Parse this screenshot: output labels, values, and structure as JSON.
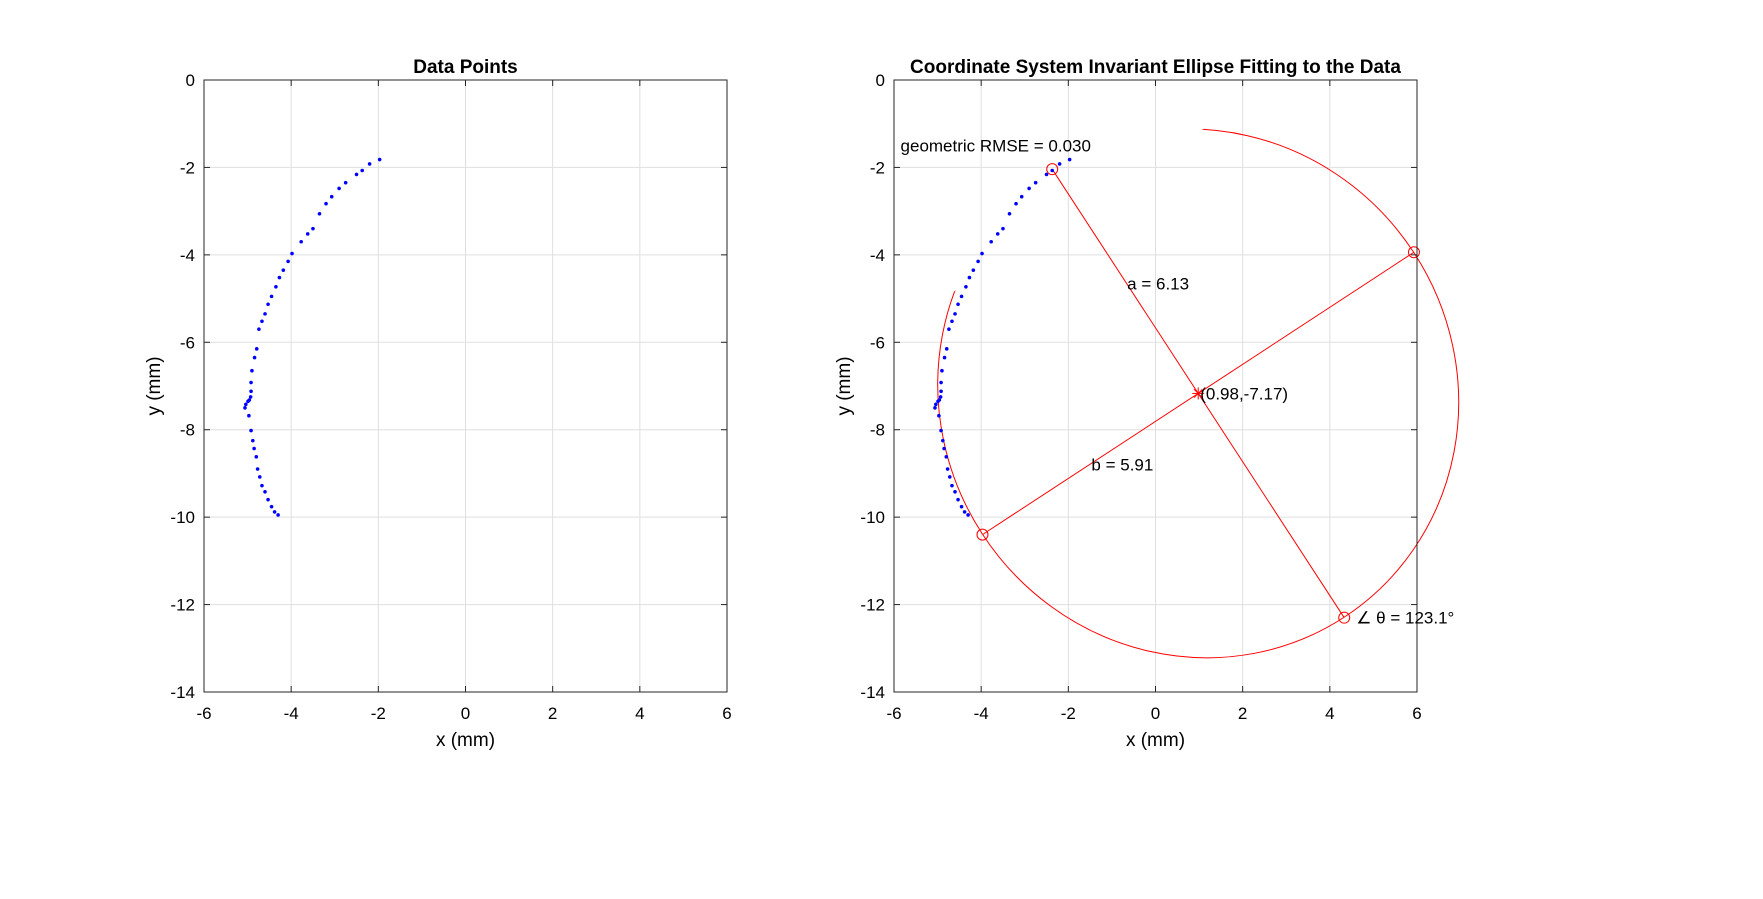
{
  "chart_data": [
    {
      "type": "scatter",
      "title": "Data Points",
      "xlabel": "x (mm)",
      "ylabel": "y (mm)",
      "xlim": [
        -6,
        6
      ],
      "ylim": [
        -14,
        0
      ],
      "xticks": [
        -6,
        -4,
        -2,
        0,
        2,
        4,
        6
      ],
      "yticks": [
        -14,
        -12,
        -10,
        -8,
        -6,
        -4,
        -2,
        0
      ],
      "xticklabels": [
        "-6",
        "-4",
        "-2",
        "0",
        "2",
        "4",
        "6"
      ],
      "yticklabels": [
        "-14",
        "-12",
        "-10",
        "-8",
        "-6",
        "-4",
        "-2",
        "0"
      ],
      "grid": true,
      "series": [
        {
          "color": "#0000ff",
          "x": [
            -1.97,
            -2.2,
            -2.37,
            -2.5,
            -2.75,
            -2.9,
            -3.07,
            -3.2,
            -3.35,
            -3.5,
            -3.62,
            -3.77,
            -3.98,
            -4.07,
            -4.18,
            -4.27,
            -4.35,
            -4.45,
            -4.53,
            -4.6,
            -4.67,
            -4.74,
            -4.79,
            -4.84,
            -4.9,
            -4.92,
            -4.92,
            -4.93,
            -4.96,
            -4.99,
            -5.04,
            -5.06,
            -4.97,
            -4.92,
            -4.88,
            -4.85,
            -4.8,
            -4.77,
            -4.72,
            -4.67,
            -4.6,
            -4.53,
            -4.45,
            -4.38,
            -4.3
          ],
          "y": [
            -1.82,
            -1.92,
            -2.07,
            -2.16,
            -2.35,
            -2.48,
            -2.67,
            -2.83,
            -3.06,
            -3.4,
            -3.52,
            -3.7,
            -3.97,
            -4.15,
            -4.35,
            -4.52,
            -4.73,
            -4.95,
            -5.13,
            -5.35,
            -5.52,
            -5.7,
            -6.15,
            -6.35,
            -6.65,
            -6.92,
            -7.12,
            -7.25,
            -7.32,
            -7.35,
            -7.42,
            -7.5,
            -7.68,
            -8.02,
            -8.25,
            -8.43,
            -8.62,
            -8.9,
            -9.08,
            -9.28,
            -9.42,
            -9.6,
            -9.76,
            -9.88,
            -9.95
          ]
        }
      ]
    },
    {
      "type": "scatter",
      "title": "Coordinate System Invariant Ellipse Fitting to the Data",
      "xlabel": "x (mm)",
      "ylabel": "y (mm)",
      "xlim": [
        -6,
        6
      ],
      "ylim": [
        -14,
        0
      ],
      "xticks": [
        -6,
        -4,
        -2,
        0,
        2,
        4,
        6
      ],
      "yticks": [
        -14,
        -12,
        -10,
        -8,
        -6,
        -4,
        -2,
        0
      ],
      "xticklabels": [
        "-6",
        "-4",
        "-2",
        "0",
        "2",
        "4",
        "6"
      ],
      "yticklabels": [
        "-14",
        "-12",
        "-10",
        "-8",
        "-6",
        "-4",
        "-2",
        "0"
      ],
      "grid": true,
      "series": [
        {
          "color": "#0000ff",
          "x": [
            -1.97,
            -2.2,
            -2.37,
            -2.5,
            -2.75,
            -2.9,
            -3.07,
            -3.2,
            -3.35,
            -3.5,
            -3.62,
            -3.77,
            -3.98,
            -4.07,
            -4.18,
            -4.27,
            -4.35,
            -4.45,
            -4.53,
            -4.6,
            -4.67,
            -4.74,
            -4.79,
            -4.84,
            -4.9,
            -4.92,
            -4.92,
            -4.93,
            -4.96,
            -4.99,
            -5.04,
            -5.06,
            -4.97,
            -4.92,
            -4.88,
            -4.85,
            -4.8,
            -4.77,
            -4.72,
            -4.67,
            -4.6,
            -4.53,
            -4.45,
            -4.38,
            -4.3
          ],
          "y": [
            -1.82,
            -1.92,
            -2.07,
            -2.16,
            -2.35,
            -2.48,
            -2.67,
            -2.83,
            -3.06,
            -3.4,
            -3.52,
            -3.7,
            -3.97,
            -4.15,
            -4.35,
            -4.52,
            -4.73,
            -4.95,
            -5.13,
            -5.35,
            -5.52,
            -5.7,
            -6.15,
            -6.35,
            -6.65,
            -6.92,
            -7.12,
            -7.25,
            -7.32,
            -7.35,
            -7.42,
            -7.5,
            -7.68,
            -8.02,
            -8.25,
            -8.43,
            -8.62,
            -8.9,
            -9.08,
            -9.28,
            -9.42,
            -9.6,
            -9.76,
            -9.88,
            -9.95
          ]
        }
      ],
      "ellipse": {
        "color": "#ff0000",
        "center": [
          0.98,
          -7.17
        ],
        "a": 6.13,
        "b": 5.91,
        "theta_deg": 123.1,
        "vertices": [
          [
            -2.37,
            -2.04
          ],
          [
            4.33,
            -12.3
          ],
          [
            5.93,
            -3.94
          ],
          [
            -3.97,
            -10.4
          ]
        ]
      },
      "annotations": {
        "rmse": "geometric RMSE = 0.030",
        "a_label": "a = 6.13",
        "b_label": "b = 5.91",
        "center_label": "(0.98,-7.17)",
        "angle_label": "∠ θ = 123.1°"
      }
    }
  ]
}
